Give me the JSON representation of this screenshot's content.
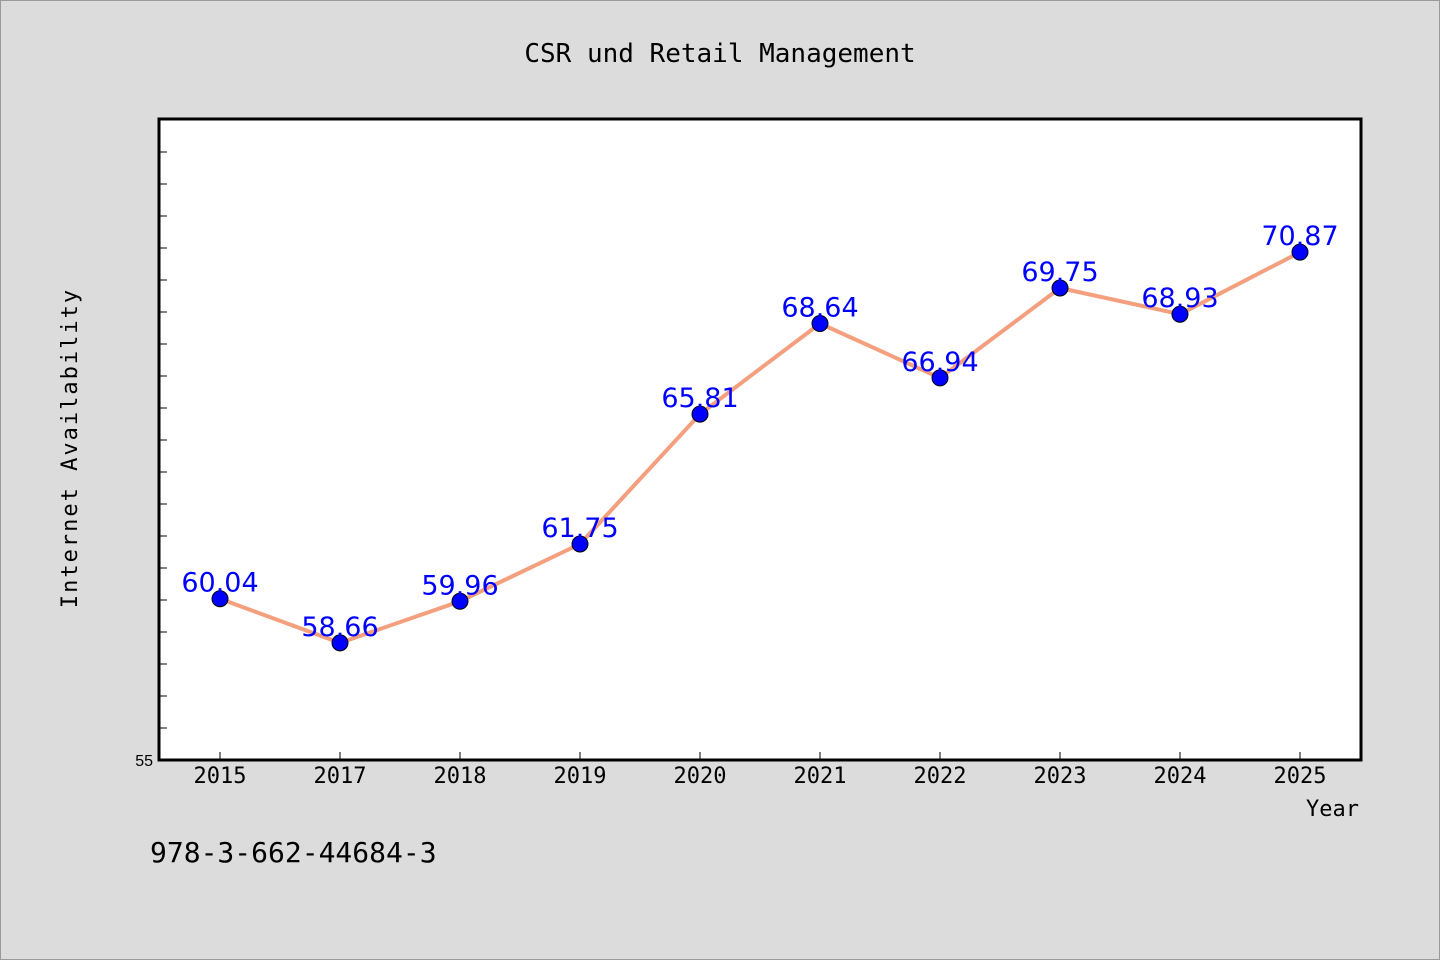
{
  "chart_data": {
    "type": "line",
    "title": "CSR und Retail Management",
    "xlabel": "Year",
    "ylabel": "Internet Availability",
    "categories": [
      "2015",
      "2017",
      "2018",
      "2019",
      "2020",
      "2021",
      "2022",
      "2023",
      "2024",
      "2025"
    ],
    "series": [
      {
        "values": [
          60.04,
          58.66,
          59.96,
          61.75,
          65.81,
          68.64,
          66.94,
          69.75,
          68.93,
          70.87
        ],
        "labels": [
          "60.04",
          "58.66",
          "59.96",
          "61.75",
          "65.81",
          "68.64",
          "66.94",
          "69.75",
          "68.93",
          "70.87"
        ]
      }
    ],
    "ylim": [
      55,
      75
    ],
    "ytick_labels": [
      "55"
    ],
    "grid": false,
    "footnote": "978-3-662-44684-3",
    "colors": {
      "line": "#f4a07f",
      "marker": "#0000ff",
      "data_label": "#0000ff",
      "background": "#dcdcdc",
      "plot_area": "#ffffff"
    }
  }
}
